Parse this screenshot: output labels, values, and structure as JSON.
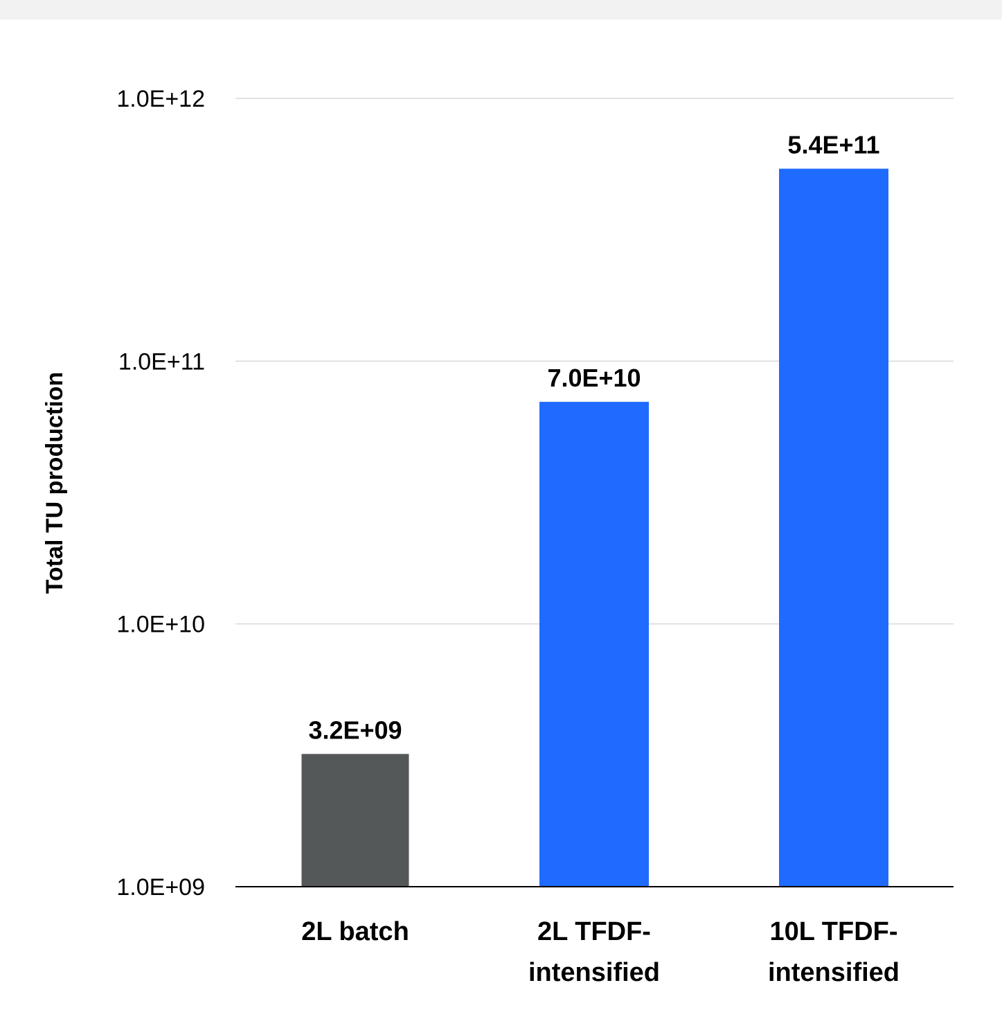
{
  "chart_data": {
    "type": "bar",
    "categories": [
      [
        "2L batch"
      ],
      [
        "2L TFDF-",
        "intensified"
      ],
      [
        "10L TFDF-",
        "intensified"
      ]
    ],
    "values": [
      3200000000.0,
      70000000000.0,
      540000000000.0
    ],
    "data_labels": [
      "3.2E+09",
      "7.0E+10",
      "5.4E+11"
    ],
    "bar_colors": [
      "#555859",
      "#1f6bff",
      "#1f6bff"
    ],
    "ylabel": "Total TU production",
    "y_scale": "log",
    "ylim": [
      1000000000.0,
      1000000000000.0
    ],
    "y_ticks": [
      1000000000.0,
      10000000000.0,
      100000000000.0,
      1000000000000.0
    ],
    "y_tick_labels": [
      "1.0E+09",
      "1.0E+10",
      "1.0E+11",
      "1.0E+12"
    ],
    "grid": true,
    "gridline_color": "#d9d9d9",
    "axis_color": "#000000"
  }
}
